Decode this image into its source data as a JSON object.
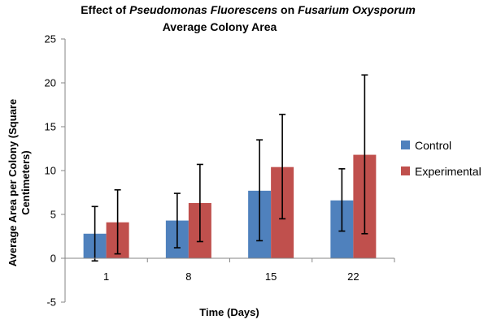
{
  "chart_data": {
    "type": "bar",
    "title": {
      "line1_prefix": "Effect of ",
      "line1_species1": "Pseudomonas Fluorescens",
      "line1_middle": " on ",
      "line1_species2": "Fusarium Oxysporum",
      "line2": "Average Colony Area"
    },
    "xlabel": "Time (Days)",
    "ylabel_lines": [
      "Average Area per Colony (Square",
      "Centimeters)"
    ],
    "categories": [
      "1",
      "8",
      "15",
      "22"
    ],
    "ylim": [
      -5,
      25
    ],
    "yticks": [
      -5,
      0,
      5,
      10,
      15,
      20,
      25
    ],
    "grid": false,
    "legend_position": "right",
    "series": [
      {
        "name": "Control",
        "color": "#4f81bd",
        "values": [
          2.8,
          4.3,
          7.7,
          6.6
        ],
        "error_low": [
          -0.3,
          1.2,
          2.0,
          3.1
        ],
        "error_high": [
          5.9,
          7.4,
          13.5,
          10.2
        ]
      },
      {
        "name": "Experimental",
        "color": "#c0504d",
        "values": [
          4.1,
          6.3,
          10.4,
          11.8
        ],
        "error_low": [
          0.5,
          1.9,
          4.5,
          2.8
        ],
        "error_high": [
          7.8,
          10.7,
          16.4,
          20.9
        ]
      }
    ]
  }
}
